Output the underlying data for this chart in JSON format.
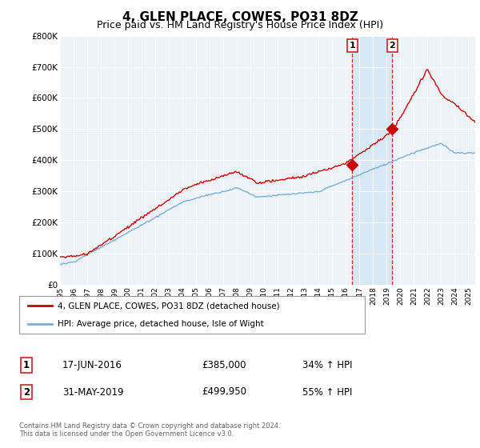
{
  "title": "4, GLEN PLACE, COWES, PO31 8DZ",
  "subtitle": "Price paid vs. HM Land Registry's House Price Index (HPI)",
  "title_fontsize": 11,
  "subtitle_fontsize": 9,
  "ylim": [
    0,
    800000
  ],
  "yticks": [
    0,
    100000,
    200000,
    300000,
    400000,
    500000,
    600000,
    700000,
    800000
  ],
  "ytick_labels": [
    "£0",
    "£100K",
    "£200K",
    "£300K",
    "£400K",
    "£500K",
    "£600K",
    "£700K",
    "£800K"
  ],
  "hpi_color": "#7ab0d8",
  "price_color": "#cc0000",
  "vline_color": "#cc0000",
  "shade_color": "#d0e4f5",
  "background_color": "#ffffff",
  "plot_bg_color": "#eef3fa",
  "grid_color": "#ffffff",
  "legend_label_price": "4, GLEN PLACE, COWES, PO31 8DZ (detached house)",
  "legend_label_hpi": "HPI: Average price, detached house, Isle of Wight",
  "transaction1_date": "17-JUN-2016",
  "transaction1_price": "£385,000",
  "transaction1_hpi": "34% ↑ HPI",
  "transaction1_x": 2016.46,
  "transaction1_y": 385000,
  "transaction2_date": "31-MAY-2019",
  "transaction2_price": "£499,950",
  "transaction2_hpi": "55% ↑ HPI",
  "transaction2_x": 2019.41,
  "transaction2_y": 499950,
  "footer": "Contains HM Land Registry data © Crown copyright and database right 2024.\nThis data is licensed under the Open Government Licence v3.0.",
  "xmin": 1995,
  "xmax": 2025.5,
  "xticks": [
    1995,
    1996,
    1997,
    1998,
    1999,
    2000,
    2001,
    2002,
    2003,
    2004,
    2005,
    2006,
    2007,
    2008,
    2009,
    2010,
    2011,
    2012,
    2013,
    2014,
    2015,
    2016,
    2017,
    2018,
    2019,
    2020,
    2021,
    2022,
    2023,
    2024,
    2025
  ]
}
